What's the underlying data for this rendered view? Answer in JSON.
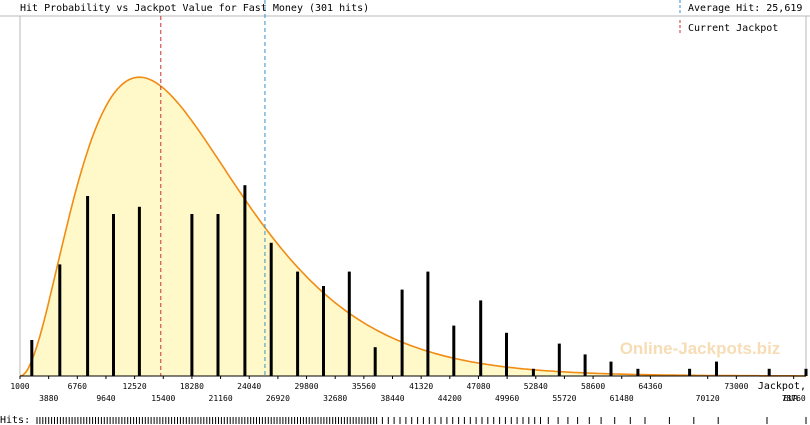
{
  "chart_data": {
    "type": "bar",
    "title": "Hit Probability vs Jackpot Value for Fast Money (301 hits)",
    "legend": {
      "placement": "top-right",
      "items": [
        {
          "label": "Average Hit: 25,619",
          "color": "#3a8fd0",
          "style": "dashed"
        },
        {
          "label": "Current Jackpot",
          "color": "#c83232",
          "style": "dashed"
        }
      ]
    },
    "x_axis_label_line1": "Jackpot,",
    "x_axis_label_line2": "EUR",
    "hits_label": "Hits:",
    "watermark": "Online-Jackpots.biz",
    "xlim": [
      1000,
      80000
    ],
    "ylim": [
      0,
      100
    ],
    "average_hit": 25619,
    "current_jackpot": 15150,
    "tick_labels_upper": [
      "1000",
      "6760",
      "12520",
      "18280",
      "24040",
      "29800",
      "35560",
      "41320",
      "47080",
      "52840",
      "58600",
      "64360",
      "73000"
    ],
    "tick_labels_lower": [
      "3880",
      "9640",
      "15400",
      "21160",
      "26920",
      "32680",
      "38440",
      "44200",
      "49960",
      "55720",
      "61480",
      "70120",
      "78760"
    ],
    "bars": [
      {
        "x": 2190,
        "value": 10
      },
      {
        "x": 5000,
        "value": 31
      },
      {
        "x": 7790,
        "value": 50
      },
      {
        "x": 10400,
        "value": 45
      },
      {
        "x": 13000,
        "value": 47
      },
      {
        "x": 15500,
        "value": 0
      },
      {
        "x": 18280,
        "value": 45
      },
      {
        "x": 20900,
        "value": 45
      },
      {
        "x": 23600,
        "value": 53
      },
      {
        "x": 26250,
        "value": 37
      },
      {
        "x": 28900,
        "value": 29
      },
      {
        "x": 31500,
        "value": 25
      },
      {
        "x": 34100,
        "value": 29
      },
      {
        "x": 36700,
        "value": 8
      },
      {
        "x": 39400,
        "value": 24
      },
      {
        "x": 42000,
        "value": 29
      },
      {
        "x": 44600,
        "value": 14
      },
      {
        "x": 47300,
        "value": 21
      },
      {
        "x": 49900,
        "value": 12
      },
      {
        "x": 52600,
        "value": 2
      },
      {
        "x": 55200,
        "value": 9
      },
      {
        "x": 57800,
        "value": 6
      },
      {
        "x": 60400,
        "value": 4
      },
      {
        "x": 63100,
        "value": 2
      },
      {
        "x": 68300,
        "value": 2
      },
      {
        "x": 71000,
        "value": 4
      },
      {
        "x": 76300,
        "value": 2
      },
      {
        "x": 80000,
        "value": 2
      }
    ],
    "curve": {
      "color": "#f08c14",
      "fill": "#fff8c8",
      "peak_x": 13000,
      "peak_value": 83
    },
    "hit_marks": [
      1200,
      1500,
      1800,
      2100,
      2400,
      2700,
      3000,
      3300,
      3600,
      3900,
      4200,
      4500,
      4800,
      5100,
      5400,
      5700,
      6000,
      6300,
      6600,
      6900,
      7200,
      7500,
      7800,
      8100,
      8400,
      8700,
      9000,
      9300,
      9600,
      9900,
      10200,
      10500,
      10800,
      11100,
      11400,
      11700,
      12000,
      12300,
      12600,
      12900,
      13200,
      13500,
      13800,
      14100,
      14400,
      14700,
      15000,
      15300,
      15600,
      15900,
      16200,
      16500,
      16800,
      17100,
      17400,
      17700,
      18000,
      18300,
      18600,
      18900,
      19200,
      19500,
      19800,
      20100,
      20400,
      20700,
      21000,
      21300,
      21600,
      21900,
      22200,
      22500,
      22800,
      23100,
      23400,
      23700,
      24000,
      24300,
      24600,
      24900,
      25200,
      25500,
      25800,
      26100,
      26400,
      26700,
      27000,
      27300,
      27600,
      27900,
      28200,
      28500,
      28800,
      29100,
      29400,
      29700,
      30000,
      30300,
      30600,
      30900,
      31200,
      31500,
      31800,
      32100,
      32400,
      32700,
      33000,
      33300,
      33600,
      33900,
      34200,
      34500,
      34800,
      35100,
      35400,
      35700,
      36000,
      36600,
      37200,
      37800,
      38400,
      39000,
      39600,
      40200,
      40800,
      41400,
      42000,
      42600,
      43200,
      43800,
      44400,
      45000,
      45600,
      46200,
      46800,
      47400,
      48000,
      48600,
      49200,
      49800,
      50400,
      51000,
      51600,
      52200,
      52800,
      53600,
      54600,
      55600,
      56600,
      57800,
      59000,
      60400,
      62000,
      63500,
      66000,
      68500,
      71000,
      76000,
      80000
    ]
  }
}
